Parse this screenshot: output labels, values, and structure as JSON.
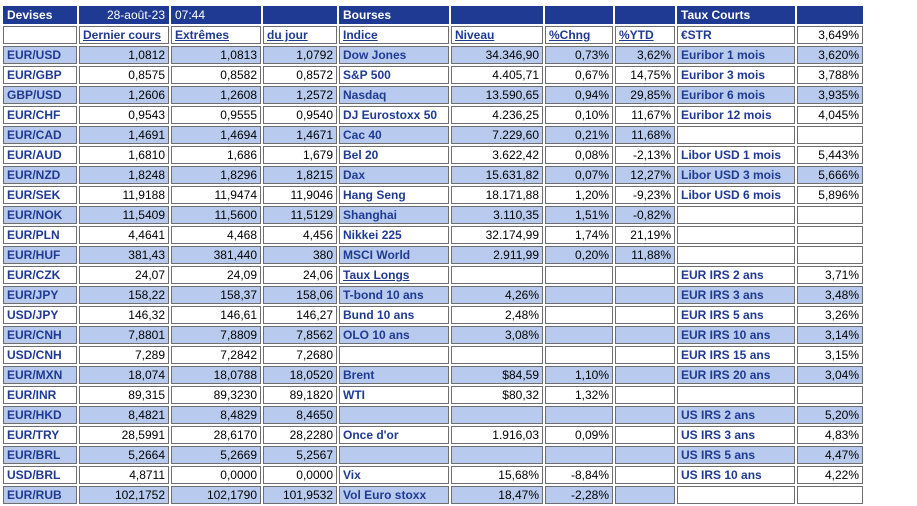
{
  "header": {
    "devises": "Devises",
    "date": "28-août-23",
    "time": "07:44",
    "bourses": "Bourses",
    "taux_courts": "Taux Courts"
  },
  "columns": {
    "currency_pair": "",
    "dernier_cours": "Dernier cours",
    "extremes": "Extrêmes",
    "du_jour": "du jour",
    "indice": "Indice",
    "niveau": "Niveau",
    "pct_chng": "%Chng",
    "pct_ytd": "%YTD",
    "estr_label": "€STR",
    "estr_value": "3,649%"
  },
  "rows": [
    {
      "pair": "EUR/USD",
      "last": "1,0812",
      "high": "1,0813",
      "low": "1,0792",
      "index": "Dow Jones",
      "level": "34.346,90",
      "chng": "0,73%",
      "ytd": "3,62%",
      "rate": "Euribor 1 mois",
      "rate_val": "3,620%"
    },
    {
      "pair": "EUR/GBP",
      "last": "0,8575",
      "high": "0,8582",
      "low": "0,8572",
      "index": "S&P 500",
      "level": "4.405,71",
      "chng": "0,67%",
      "ytd": "14,75%",
      "rate": "Euribor 3 mois",
      "rate_val": "3,788%"
    },
    {
      "pair": "GBP/USD",
      "last": "1,2606",
      "high": "1,2608",
      "low": "1,2572",
      "index": "Nasdaq",
      "level": "13.590,65",
      "chng": "0,94%",
      "ytd": "29,85%",
      "rate": "Euribor 6 mois",
      "rate_val": "3,935%"
    },
    {
      "pair": "EUR/CHF",
      "last": "0,9543",
      "high": "0,9555",
      "low": "0,9540",
      "index": "DJ Eurostoxx 50",
      "level": "4.236,25",
      "chng": "0,10%",
      "ytd": "11,67%",
      "rate": "Euribor 12 mois",
      "rate_val": "4,045%"
    },
    {
      "pair": "EUR/CAD",
      "last": "1,4691",
      "high": "1,4694",
      "low": "1,4671",
      "index": "Cac 40",
      "level": "7.229,60",
      "chng": "0,21%",
      "ytd": "11,68%",
      "rate": "",
      "rate_val": ""
    },
    {
      "pair": "EUR/AUD",
      "last": "1,6810",
      "high": "1,686",
      "low": "1,679",
      "index": "Bel 20",
      "level": "3.622,42",
      "chng": "0,08%",
      "ytd": "-2,13%",
      "rate": "Libor USD 1 mois",
      "rate_val": "5,443%"
    },
    {
      "pair": "EUR/NZD",
      "last": "1,8248",
      "high": "1,8296",
      "low": "1,8215",
      "index": "Dax",
      "level": "15.631,82",
      "chng": "0,07%",
      "ytd": "12,27%",
      "rate": "Libor USD 3 mois",
      "rate_val": "5,666%"
    },
    {
      "pair": "EUR/SEK",
      "last": "11,9188",
      "high": "11,9474",
      "low": "11,9046",
      "index": "Hang Seng",
      "level": "18.171,88",
      "chng": "1,20%",
      "ytd": "-9,23%",
      "rate": "Libor USD 6 mois",
      "rate_val": "5,896%"
    },
    {
      "pair": "EUR/NOK",
      "last": "11,5409",
      "high": "11,5600",
      "low": "11,5129",
      "index": "Shanghai",
      "level": "3.110,35",
      "chng": "1,51%",
      "ytd": "-0,82%",
      "rate": "",
      "rate_val": ""
    },
    {
      "pair": "EUR/PLN",
      "last": "4,4641",
      "high": "4,468",
      "low": "4,456",
      "index": "Nikkei 225",
      "level": "32.174,99",
      "chng": "1,74%",
      "ytd": "21,19%",
      "rate": "",
      "rate_val": ""
    },
    {
      "pair": "EUR/HUF",
      "last": "381,43",
      "high": "381,440",
      "low": "380",
      "index": "MSCI World",
      "level": "2.911,99",
      "chng": "0,20%",
      "ytd": "11,88%",
      "rate": "",
      "rate_val": ""
    },
    {
      "pair": "EUR/CZK",
      "last": "24,07",
      "high": "24,09",
      "low": "24,06",
      "index": "Taux Longs",
      "level": "",
      "chng": "",
      "ytd": "",
      "rate": "EUR IRS 2 ans",
      "rate_val": "3,71%"
    },
    {
      "pair": "EUR/JPY",
      "last": "158,22",
      "high": "158,37",
      "low": "158,06",
      "index": "T-bond 10 ans",
      "level": "4,26%",
      "chng": "",
      "ytd": "",
      "rate": "EUR IRS 3 ans",
      "rate_val": "3,48%"
    },
    {
      "pair": "USD/JPY",
      "last": "146,32",
      "high": "146,61",
      "low": "146,27",
      "index": "Bund 10 ans",
      "level": "2,48%",
      "chng": "",
      "ytd": "",
      "rate": "EUR IRS 5 ans",
      "rate_val": "3,26%"
    },
    {
      "pair": "EUR/CNH",
      "last": "7,8801",
      "high": "7,8809",
      "low": "7,8562",
      "index": "OLO 10 ans",
      "level": "3,08%",
      "chng": "",
      "ytd": "",
      "rate": "EUR IRS 10 ans",
      "rate_val": "3,14%"
    },
    {
      "pair": "USD/CNH",
      "last": "7,289",
      "high": "7,2842",
      "low": "7,2680",
      "index": "",
      "level": "",
      "chng": "",
      "ytd": "",
      "rate": "EUR IRS 15 ans",
      "rate_val": "3,15%"
    },
    {
      "pair": "EUR/MXN",
      "last": "18,074",
      "high": "18,0788",
      "low": "18,0520",
      "index": "Brent",
      "level": "$84,59",
      "chng": "1,10%",
      "ytd": "",
      "rate": "EUR IRS 20 ans",
      "rate_val": "3,04%"
    },
    {
      "pair": "EUR/INR",
      "last": "89,315",
      "high": "89,3230",
      "low": "89,1820",
      "index": "WTI",
      "level": "$80,32",
      "chng": "1,32%",
      "ytd": "",
      "rate": "",
      "rate_val": ""
    },
    {
      "pair": "EUR/HKD",
      "last": "8,4821",
      "high": "8,4829",
      "low": "8,4650",
      "index": "",
      "level": "",
      "chng": "",
      "ytd": "",
      "rate": "US IRS 2 ans",
      "rate_val": "5,20%"
    },
    {
      "pair": "EUR/TRY",
      "last": "28,5991",
      "high": "28,6170",
      "low": "28,2280",
      "index": "Once d'or",
      "level": "1.916,03",
      "chng": "0,09%",
      "ytd": "",
      "rate": "US IRS 3 ans",
      "rate_val": "4,83%"
    },
    {
      "pair": "EUR/BRL",
      "last": "5,2664",
      "high": "5,2669",
      "low": "5,2567",
      "index": "",
      "level": "",
      "chng": "",
      "ytd": "",
      "rate": "US IRS 5 ans",
      "rate_val": "4,47%"
    },
    {
      "pair": "USD/BRL",
      "last": "4,8711",
      "high": "0,0000",
      "low": "0,0000",
      "index": "Vix",
      "level": "15,68%",
      "chng": "-8,84%",
      "ytd": "",
      "rate": "US IRS 10 ans",
      "rate_val": "4,22%"
    },
    {
      "pair": "EUR/RUB",
      "last": "102,1752",
      "high": "102,1790",
      "low": "101,9532",
      "index": "Vol Euro stoxx",
      "level": "18,47%",
      "chng": "-2,28%",
      "ytd": "",
      "rate": "",
      "rate_val": ""
    }
  ],
  "colors": {
    "header_bg": "#1f3a93",
    "header_text": "#ffffff",
    "label_text": "#1f3a93",
    "alt_row_bg": "#b8cbee"
  }
}
